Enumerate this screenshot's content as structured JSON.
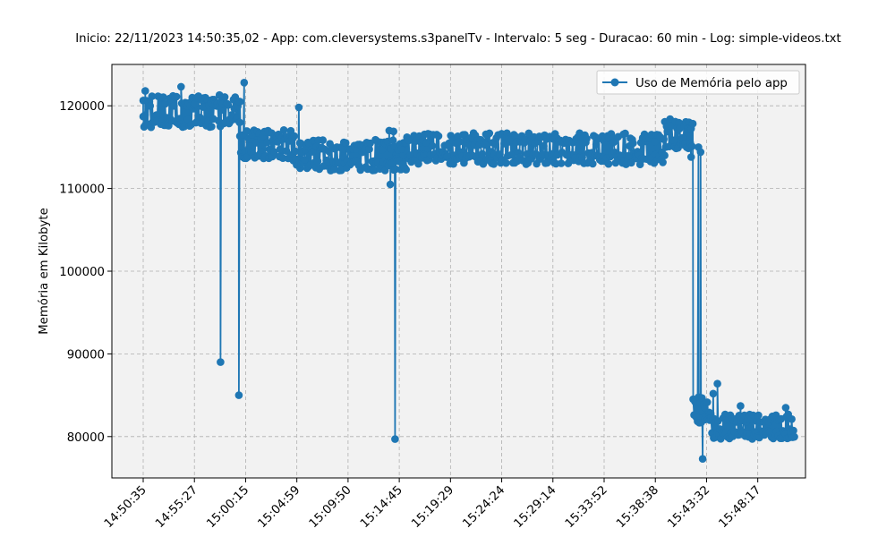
{
  "chart_data": {
    "type": "line",
    "title": "Inicio: 22/11/2023 14:50:35,02 - App: com.cleversystems.s3panelTv - Intervalo: 5 seg - Duracao: 60 min - Log: simple-videos.txt",
    "xlabel": "",
    "ylabel": "Memória em Kilobyte",
    "ylim": [
      75000,
      125000
    ],
    "yticks": [
      80000,
      90000,
      100000,
      110000,
      120000
    ],
    "xticks": [
      "14:50:35",
      "14:55:27",
      "15:00:15",
      "15:04:59",
      "15:09:50",
      "15:14:45",
      "15:19:29",
      "15:24:24",
      "15:29:14",
      "15:33:52",
      "15:38:38",
      "15:43:32",
      "15:48:17"
    ],
    "sample_interval_s": 5,
    "grid": true,
    "legend_position": "top-right",
    "series": [
      {
        "name": "Uso de Memória pelo app",
        "color": "#1f77b4",
        "marker": "circle",
        "segments": [
          {
            "from_min": 0.0,
            "to_min": 9.2,
            "base": 119300,
            "amp": 1900,
            "seed": 1
          },
          {
            "from_min": 9.2,
            "to_min": 14.5,
            "base": 115200,
            "amp": 1900,
            "seed": 2
          },
          {
            "from_min": 14.5,
            "to_min": 25.0,
            "base": 114000,
            "amp": 1900,
            "seed": 3
          },
          {
            "from_min": 25.0,
            "to_min": 49.6,
            "base": 114800,
            "amp": 1900,
            "seed": 4
          },
          {
            "from_min": 49.6,
            "to_min": 52.3,
            "base": 116500,
            "amp": 1700,
            "seed": 5
          },
          {
            "from_min": 52.3,
            "to_min": 54.0,
            "base": 83200,
            "amp": 1600,
            "seed": 6
          },
          {
            "from_min": 54.0,
            "to_min": 62.0,
            "base": 81200,
            "amp": 1500,
            "seed": 7
          }
        ],
        "points": [
          {
            "t_min": 0.0,
            "value": 118700
          },
          {
            "t_min": 0.2,
            "value": 121800
          },
          {
            "t_min": 3.6,
            "value": 122300
          },
          {
            "t_min": 7.25,
            "value": 121300
          },
          {
            "t_min": 7.35,
            "value": 89000
          },
          {
            "t_min": 7.45,
            "value": 119500
          },
          {
            "t_min": 9.1,
            "value": 85000
          },
          {
            "t_min": 9.2,
            "value": 120500
          },
          {
            "t_min": 9.6,
            "value": 122800
          },
          {
            "t_min": 14.8,
            "value": 119800
          },
          {
            "t_min": 14.9,
            "value": 115500
          },
          {
            "t_min": 15.0,
            "value": 113000
          },
          {
            "t_min": 23.4,
            "value": 117000
          },
          {
            "t_min": 23.5,
            "value": 110500
          },
          {
            "t_min": 23.6,
            "value": 114800
          },
          {
            "t_min": 23.8,
            "value": 116900
          },
          {
            "t_min": 23.95,
            "value": 79700
          },
          {
            "t_min": 24.05,
            "value": 114000
          },
          {
            "t_min": 50.1,
            "value": 118400
          },
          {
            "t_min": 51.9,
            "value": 118000
          },
          {
            "t_min": 52.1,
            "value": 113800
          },
          {
            "t_min": 52.6,
            "value": 82300
          },
          {
            "t_min": 52.8,
            "value": 115000
          },
          {
            "t_min": 53.0,
            "value": 114400
          },
          {
            "t_min": 53.2,
            "value": 77300
          },
          {
            "t_min": 53.4,
            "value": 83500
          },
          {
            "t_min": 54.2,
            "value": 85200
          },
          {
            "t_min": 54.6,
            "value": 86400
          },
          {
            "t_min": 56.8,
            "value": 83700
          },
          {
            "t_min": 61.1,
            "value": 83500
          },
          {
            "t_min": 61.6,
            "value": 80600
          }
        ]
      }
    ]
  }
}
